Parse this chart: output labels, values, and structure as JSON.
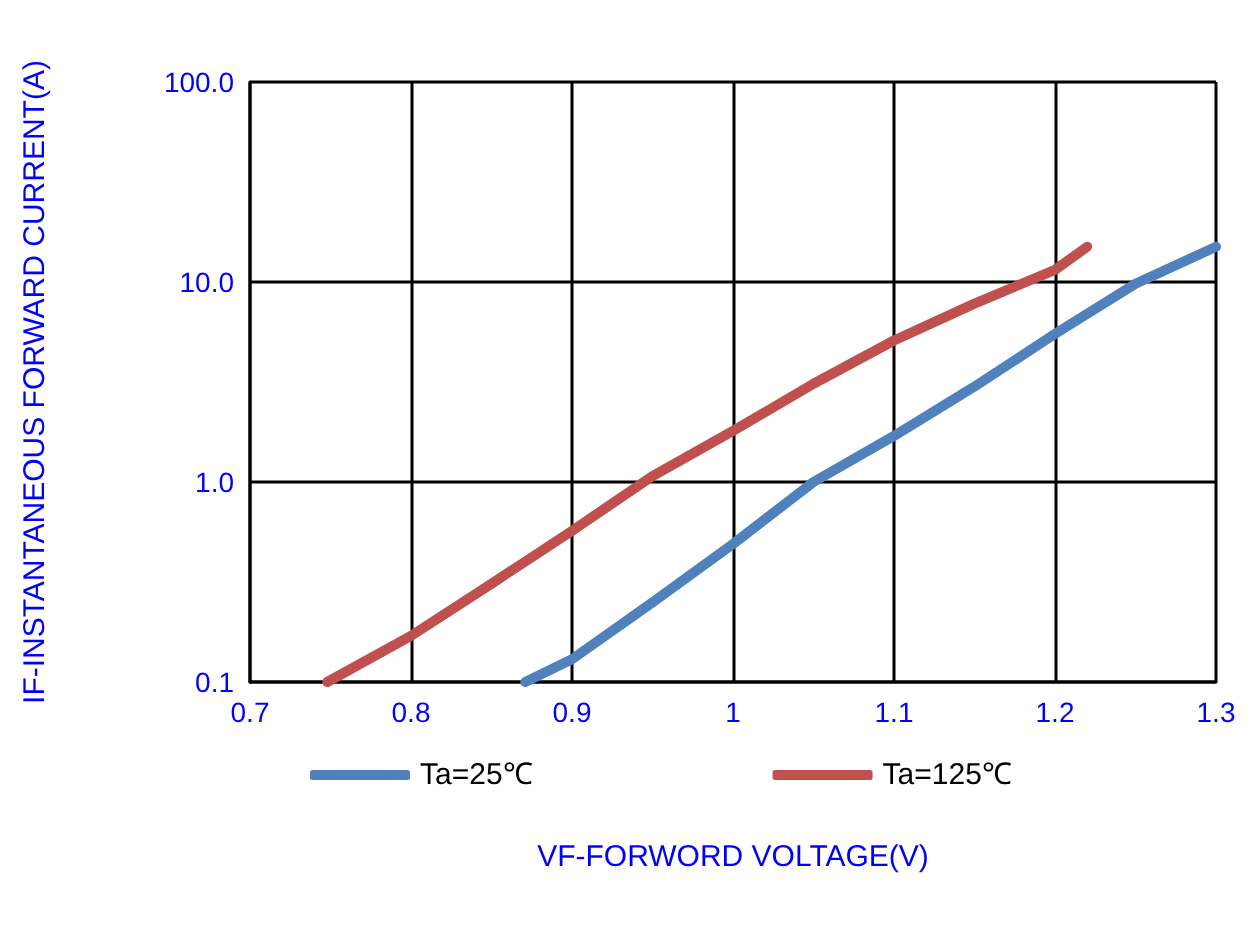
{
  "chart_data": {
    "type": "line",
    "xlabel": "VF-FORWORD VOLTAGE(V)",
    "ylabel": "IF-INSTANTANEOUS FORWARD CURRENT(A)",
    "xlim": [
      0.7,
      1.3
    ],
    "xticks": [
      0.7,
      0.8,
      0.9,
      1,
      1.1,
      1.2,
      1.3
    ],
    "ylim": [
      0.1,
      100
    ],
    "yticks": [
      {
        "value": 0.1,
        "label": "0.1"
      },
      {
        "value": 1,
        "label": "1.0"
      },
      {
        "value": 10,
        "label": "10.0"
      },
      {
        "value": 100,
        "label": "100.0"
      }
    ],
    "log": "y",
    "grid": true,
    "legend": "bottom",
    "marker": "none",
    "line_style": "solid",
    "series": [
      {
        "name": "Ta=25℃",
        "color": "#4f81bd",
        "x": [
          0.871,
          0.9,
          0.95,
          1.0,
          1.05,
          1.1,
          1.15,
          1.2,
          1.25,
          1.3
        ],
        "values": [
          0.1,
          0.13,
          0.25,
          0.49,
          1.0,
          1.7,
          3.0,
          5.5,
          9.8,
          15
        ]
      },
      {
        "name": "Ta=125℃",
        "color": "#c0504d",
        "x": [
          0.748,
          0.8,
          0.85,
          0.9,
          0.95,
          1.0,
          1.05,
          1.1,
          1.15,
          1.2,
          1.22
        ],
        "values": [
          0.1,
          0.17,
          0.31,
          0.57,
          1.07,
          1.8,
          3.1,
          5.1,
          7.8,
          11.5,
          15
        ]
      }
    ]
  }
}
